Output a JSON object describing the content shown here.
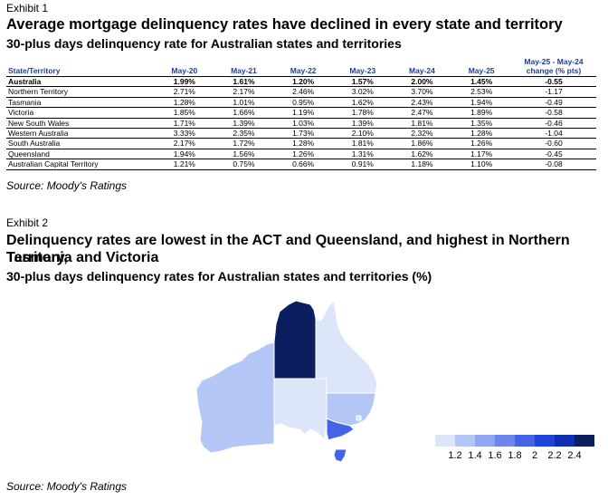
{
  "exhibit1": {
    "label": "Exhibit 1",
    "title": "Average mortgage delinquency rates have declined in every state and territory",
    "subtitle": "30-plus days delinquency rate for Australian states and territories",
    "source": "Source: Moody's Ratings"
  },
  "exhibit2": {
    "label": "Exhibit 2",
    "title_line1": "Delinquency rates are lowest in the ACT and Queensland, and highest in Northern Territory,",
    "title_line2": "Tasmania and Victoria",
    "subtitle": "30-plus days delinquency rates for Australian states and territories (%)",
    "source": "Source: Moody's Ratings"
  },
  "chart_data": [
    {
      "type": "table",
      "columns": [
        "State/Territory",
        "May-20",
        "May-21",
        "May-22",
        "May-23",
        "May-24",
        "May-25",
        "May-25 - May-24 change (% pts)"
      ],
      "header_line1": "May-25 - May-24",
      "header_line2": "change (% pts)",
      "rows": [
        [
          "Australia",
          "1.99%",
          "1.61%",
          "1.20%",
          "1.57%",
          "2.00%",
          "1.45%",
          "-0.55"
        ],
        [
          "Northern Territory",
          "2.71%",
          "2.17%",
          "2.46%",
          "3.02%",
          "3.70%",
          "2.53%",
          "-1.17"
        ],
        [
          "Tasmania",
          "1.28%",
          "1.01%",
          "0.95%",
          "1.62%",
          "2.43%",
          "1.94%",
          "-0.49"
        ],
        [
          "Victoria",
          "1.85%",
          "1.66%",
          "1.19%",
          "1.78%",
          "2.47%",
          "1.89%",
          "-0.58"
        ],
        [
          "New South Wales",
          "1.71%",
          "1.39%",
          "1.03%",
          "1.39%",
          "1.81%",
          "1.35%",
          "-0.46"
        ],
        [
          "Western Australia",
          "3.33%",
          "2.35%",
          "1.73%",
          "2.10%",
          "2.32%",
          "1.28%",
          "-1.04"
        ],
        [
          "South Australia",
          "2.17%",
          "1.72%",
          "1.28%",
          "1.81%",
          "1.86%",
          "1.26%",
          "-0.60"
        ],
        [
          "Queensland",
          "1.94%",
          "1.56%",
          "1.26%",
          "1.31%",
          "1.62%",
          "1.17%",
          "-0.45"
        ],
        [
          "Australian Capital Territory",
          "1.21%",
          "0.75%",
          "0.66%",
          "0.91%",
          "1.18%",
          "1.10%",
          "-0.08"
        ]
      ]
    },
    {
      "type": "heatmap",
      "map": "Australia states and territories",
      "metric": "30-plus days delinquency rate (%), May-25",
      "regions": [
        {
          "name": "Western Australia",
          "value": 1.28
        },
        {
          "name": "Northern Territory",
          "value": 2.53
        },
        {
          "name": "South Australia",
          "value": 1.26
        },
        {
          "name": "Queensland",
          "value": 1.17
        },
        {
          "name": "New South Wales",
          "value": 1.35
        },
        {
          "name": "Australian Capital Territory",
          "value": 1.1
        },
        {
          "name": "Victoria",
          "value": 1.89
        },
        {
          "name": "Tasmania",
          "value": 1.94
        }
      ],
      "legend": {
        "placement": "bottom-right",
        "ticks": [
          "1.2",
          "1.4",
          "1.6",
          "1.8",
          "2",
          "2.2",
          "2.4"
        ],
        "colors": [
          "#dce6f8",
          "#b4c6f5",
          "#8fa6f2",
          "#6b87ee",
          "#4364e6",
          "#1e44dc",
          "#0d2fb0",
          "#0b1f5e"
        ],
        "min": 1.1,
        "max": 2.5
      }
    }
  ]
}
